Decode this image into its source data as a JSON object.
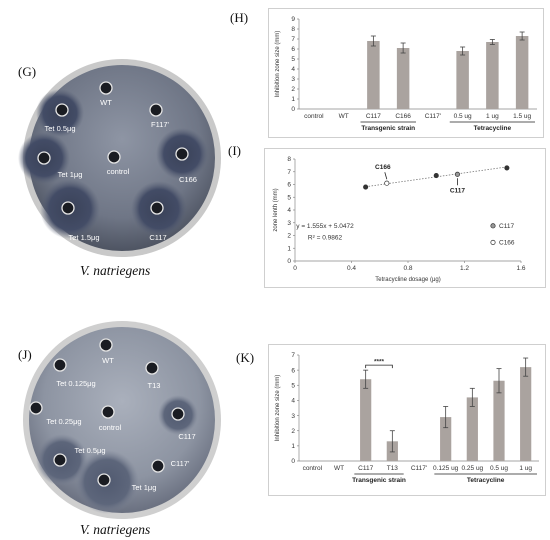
{
  "panels": {
    "g": "(G)",
    "h": "(H)",
    "i": "(I)",
    "j": "(J)",
    "k": "(K)"
  },
  "captions": {
    "top": "V. natriegens",
    "bottom": "V. natriegens"
  },
  "plate_top": {
    "labels": {
      "wt": "WT",
      "f117": "F117'",
      "tet05": "Tet 0.5μg",
      "tet1": "Tet 1μg",
      "control": "control",
      "c166": "C166",
      "tet15": "Tet 1.5μg",
      "c117": "C117"
    }
  },
  "plate_bottom": {
    "labels": {
      "wt": "WT",
      "tet0125": "Tet 0.125μg",
      "t13": "T13",
      "tet025": "Tet 0.25μg",
      "control": "control",
      "c117": "C117",
      "tet05": "Tet 0.5μg",
      "c117p": "C117'",
      "tet1": "Tet 1μg"
    }
  },
  "chart_data": [
    {
      "id": "H",
      "type": "bar",
      "ylabel": "Inhibition zone size (mm)",
      "ylim": [
        0,
        9
      ],
      "yticks": [
        0,
        1,
        2,
        3,
        4,
        5,
        6,
        7,
        8,
        9
      ],
      "categories": [
        "control",
        "WT",
        "C117",
        "C166",
        "C117'",
        "0.5 ug",
        "1 ug",
        "1.5 ug"
      ],
      "values": [
        0,
        0,
        6.8,
        6.1,
        0,
        5.8,
        6.7,
        7.3
      ],
      "errors": [
        0,
        0,
        0.5,
        0.5,
        0,
        0.4,
        0.25,
        0.4
      ],
      "groups": [
        {
          "label": "Transgenic strain",
          "from": 2,
          "to": 3
        },
        {
          "label": "Tetracycline",
          "from": 5,
          "to": 7
        }
      ]
    },
    {
      "id": "I",
      "type": "scatter",
      "xlabel": "Tetracycline dosage (μg)",
      "ylabel": "zone lenth (mm)",
      "xlim": [
        0,
        1.6
      ],
      "ylim": [
        0,
        8
      ],
      "xticks": [
        0,
        0.4,
        0.8,
        1.2,
        1.6
      ],
      "yticks": [
        0,
        1,
        2,
        3,
        4,
        5,
        6,
        7,
        8
      ],
      "series": [
        {
          "name": "tetracycline",
          "filled": true,
          "points": [
            [
              0.5,
              5.8
            ],
            [
              1.0,
              6.7
            ],
            [
              1.5,
              7.3
            ]
          ]
        },
        {
          "name": "C117",
          "filled": "half",
          "points": [
            [
              1.15,
              6.8
            ]
          ]
        },
        {
          "name": "C166",
          "filled": false,
          "points": [
            [
              0.65,
              6.1
            ]
          ]
        }
      ],
      "annotations": {
        "c166": "C166",
        "c117": "C117",
        "equation": "y = 1.555x + 5.0472",
        "r2": "R² = 0.9862"
      },
      "legend": {
        "position": "bottom-right",
        "items": [
          "C117",
          "C166"
        ]
      }
    },
    {
      "id": "K",
      "type": "bar",
      "ylabel": "Inhibition zone size (mm)",
      "ylim": [
        0,
        7
      ],
      "yticks": [
        0,
        1,
        2,
        3,
        4,
        5,
        6,
        7
      ],
      "categories": [
        "control",
        "WT",
        "C117",
        "T13",
        "C117'",
        "0.125 ug",
        "0.25 ug",
        "0.5 ug",
        "1 ug"
      ],
      "values": [
        0,
        0,
        5.4,
        1.3,
        0,
        2.9,
        4.2,
        5.3,
        6.2
      ],
      "errors": [
        0,
        0,
        0.6,
        0.7,
        0,
        0.7,
        0.6,
        0.8,
        0.6
      ],
      "significance": {
        "label": "****",
        "from": 2,
        "to": 3
      },
      "groups": [
        {
          "label": "Transgenic strain",
          "from": 2,
          "to": 3
        },
        {
          "label": "Tetracycline",
          "from": 5,
          "to": 8
        }
      ]
    }
  ]
}
